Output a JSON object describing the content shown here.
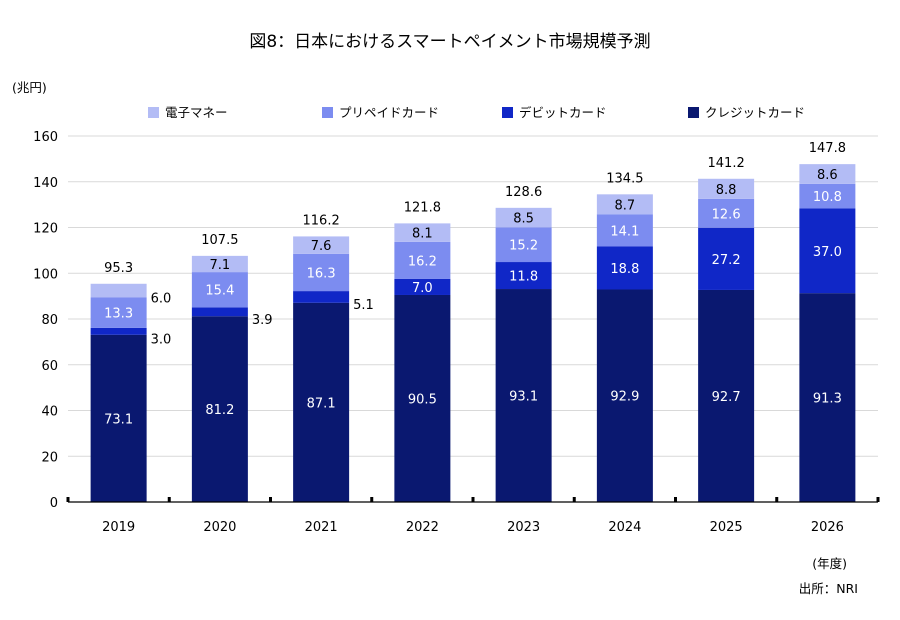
{
  "chart_data": {
    "type": "bar",
    "stacked": true,
    "title": "図8：日本におけるスマートペイメント市場規模予測",
    "ylabel": "(兆円)",
    "xlabel": "(年度)",
    "source": "出所：NRI",
    "ylim": [
      0,
      160
    ],
    "yticks": [
      0,
      20,
      40,
      60,
      80,
      100,
      120,
      140,
      160
    ],
    "grid": true,
    "legend_position": "top",
    "categories": [
      "2019",
      "2020",
      "2021",
      "2022",
      "2023",
      "2024",
      "2025",
      "2026"
    ],
    "series": [
      {
        "name": "クレジットカード",
        "color": "#0a1870",
        "values": [
          73.1,
          81.2,
          87.1,
          90.5,
          93.1,
          92.9,
          92.7,
          91.3
        ]
      },
      {
        "name": "デビットカード",
        "color": "#1027c7",
        "values": [
          3.0,
          3.9,
          5.1,
          7.0,
          11.8,
          18.8,
          27.2,
          37.0
        ]
      },
      {
        "name": "プリペイドカード",
        "color": "#7c8cf0",
        "values": [
          13.3,
          15.4,
          16.3,
          16.2,
          15.2,
          14.1,
          12.6,
          10.8
        ]
      },
      {
        "name": "電子マネー",
        "color": "#b3bcf5",
        "values": [
          6.0,
          7.1,
          7.6,
          8.1,
          8.5,
          8.7,
          8.8,
          8.6
        ]
      }
    ],
    "legend_order": [
      "電子マネー",
      "プリペイドカード",
      "デビットカード",
      "クレジットカード"
    ],
    "totals": [
      "95.3",
      "107.5",
      "116.2",
      "121.8",
      "128.6",
      "134.5",
      "141.2",
      "147.8"
    ]
  }
}
